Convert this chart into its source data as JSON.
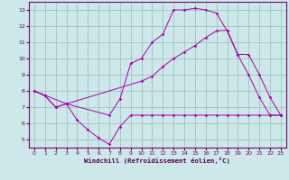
{
  "xlabel": "Windchill (Refroidissement éolien,°C)",
  "bg_color": "#cce8e8",
  "line_color": "#aa00aa",
  "grid_color": "#99bbbb",
  "xlim": [
    -0.5,
    23.5
  ],
  "ylim": [
    4.5,
    13.5
  ],
  "yticks": [
    5,
    6,
    7,
    8,
    9,
    10,
    11,
    12,
    13
  ],
  "xticks": [
    0,
    1,
    2,
    3,
    4,
    5,
    6,
    7,
    8,
    9,
    10,
    11,
    12,
    13,
    14,
    15,
    16,
    17,
    18,
    19,
    20,
    21,
    22,
    23
  ],
  "line1_x": [
    0,
    1,
    2,
    3,
    4,
    5,
    6,
    7,
    8,
    9,
    10,
    11,
    12,
    13,
    14,
    15,
    16,
    17,
    18,
    19,
    20,
    21,
    22,
    23
  ],
  "line1_y": [
    8.0,
    7.7,
    7.0,
    7.2,
    6.2,
    5.6,
    5.1,
    4.7,
    5.8,
    6.5,
    6.5,
    6.5,
    6.5,
    6.5,
    6.5,
    6.5,
    6.5,
    6.5,
    6.5,
    6.5,
    6.5,
    6.5,
    6.5,
    6.5
  ],
  "line2_x": [
    0,
    1,
    2,
    3,
    7,
    8,
    9,
    10,
    11,
    12,
    13,
    14,
    15,
    16,
    17,
    18,
    19,
    20,
    21,
    22,
    23
  ],
  "line2_y": [
    8.0,
    7.7,
    7.0,
    7.2,
    6.5,
    7.5,
    9.7,
    10.0,
    11.0,
    11.5,
    13.0,
    13.0,
    13.1,
    13.0,
    12.8,
    11.7,
    10.2,
    9.0,
    7.6,
    6.5,
    6.5
  ],
  "line3_x": [
    0,
    3,
    10,
    11,
    12,
    13,
    14,
    15,
    16,
    17,
    18,
    19,
    20,
    21,
    22,
    23
  ],
  "line3_y": [
    8.0,
    7.2,
    8.6,
    8.9,
    9.5,
    10.0,
    10.4,
    10.8,
    11.3,
    11.7,
    11.75,
    10.25,
    10.25,
    9.0,
    7.6,
    6.5
  ]
}
